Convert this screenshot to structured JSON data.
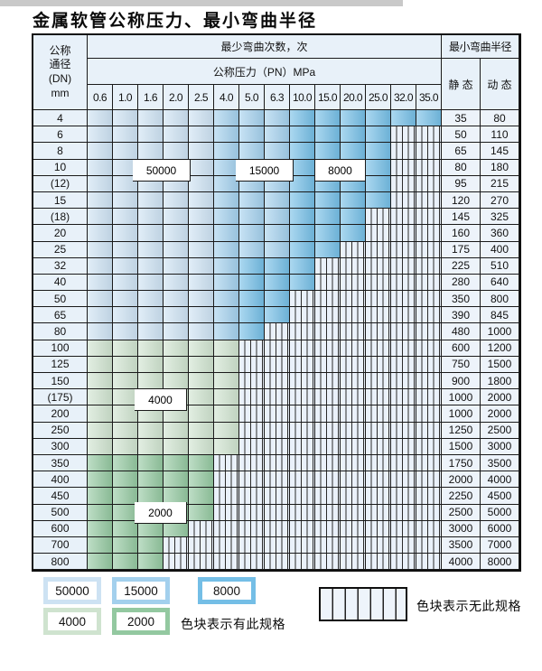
{
  "title": "金属软管公称压力、最小弯曲半径",
  "colors": {
    "blue_light": "#cde2f3",
    "blue_mid": "#a3d0ed",
    "blue_dark": "#74bee6",
    "green_light": "#cfe3cf",
    "green_mid": "#93c8a0",
    "hatch_bg": "#eaf1fa",
    "label_bg": "#e8f1f9",
    "header_bg": "#e8f1f9",
    "value_bg": "#edf3fa"
  },
  "table": {
    "corner_lines": [
      "公称",
      "通径",
      "(DN)",
      "mm"
    ],
    "bend_times_header": "最少弯曲次数，次",
    "radius_header": "最小弯曲半径",
    "pressure_header": "公称压力（PN）MPa",
    "static_label": "静 态",
    "dynamic_label": "动 态",
    "pressure_columns": [
      "0.6",
      "1.0",
      "1.6",
      "2.0",
      "2.5",
      "4.0",
      "5.0",
      "6.3",
      "10.0",
      "15.0",
      "20.0",
      "25.0",
      "32.0",
      "35.0"
    ],
    "cell_code_legend": {
      "L": "50000",
      "M": "15000",
      "D": "8000",
      "G": "4000",
      "g": "2000",
      ".": "无此规格"
    },
    "overlay_labels": {
      "v50000": "50000",
      "v15000": "15000",
      "v8000": "8000",
      "v4000": "4000",
      "v2000": "2000"
    },
    "rows": [
      {
        "dn": "4",
        "cells": "LLLLLMMMDDDDDD",
        "static": "35",
        "dynamic": "80"
      },
      {
        "dn": "6",
        "cells": "LLLLLMMMDDDD..",
        "static": "50",
        "dynamic": "110"
      },
      {
        "dn": "8",
        "cells": "LLLLLMMMDDDD..",
        "static": "65",
        "dynamic": "145"
      },
      {
        "dn": "10",
        "cells": "LLLLLMMMDDDD..",
        "static": "80",
        "dynamic": "180"
      },
      {
        "dn": "(12)",
        "cells": "LLLLLMMMDDDD..",
        "static": "95",
        "dynamic": "215"
      },
      {
        "dn": "15",
        "cells": "LLLLLMMMDDDD..",
        "static": "120",
        "dynamic": "270"
      },
      {
        "dn": "(18)",
        "cells": "LLLLLMMMDDD...",
        "static": "145",
        "dynamic": "325"
      },
      {
        "dn": "20",
        "cells": "LLLLLMMMDDD...",
        "static": "160",
        "dynamic": "360"
      },
      {
        "dn": "25",
        "cells": "LLLLLMMMDD....",
        "static": "175",
        "dynamic": "400"
      },
      {
        "dn": "32",
        "cells": "LLLLLMDDD.....",
        "static": "225",
        "dynamic": "510"
      },
      {
        "dn": "40",
        "cells": "LLLLLMDDD.....",
        "static": "280",
        "dynamic": "640"
      },
      {
        "dn": "50",
        "cells": "LLLLLMDD......",
        "static": "350",
        "dynamic": "800"
      },
      {
        "dn": "65",
        "cells": "LLLLLMDD......",
        "static": "390",
        "dynamic": "845"
      },
      {
        "dn": "80",
        "cells": "LLLLLMD.......",
        "static": "480",
        "dynamic": "1000"
      },
      {
        "dn": "100",
        "cells": "GGGGGG........",
        "static": "600",
        "dynamic": "1200"
      },
      {
        "dn": "125",
        "cells": "GGGGGG........",
        "static": "750",
        "dynamic": "1500"
      },
      {
        "dn": "150",
        "cells": "GGGGGG........",
        "static": "900",
        "dynamic": "1800"
      },
      {
        "dn": "(175)",
        "cells": "GGGGGG........",
        "static": "1000",
        "dynamic": "2000"
      },
      {
        "dn": "200",
        "cells": "GGGGGG........",
        "static": "1000",
        "dynamic": "2000"
      },
      {
        "dn": "250",
        "cells": "GGGGGG........",
        "static": "1250",
        "dynamic": "2500"
      },
      {
        "dn": "300",
        "cells": "GGGGGG........",
        "static": "1500",
        "dynamic": "3000"
      },
      {
        "dn": "350",
        "cells": "ggggg.........",
        "static": "1750",
        "dynamic": "3500"
      },
      {
        "dn": "400",
        "cells": "ggggg.........",
        "static": "2000",
        "dynamic": "4000"
      },
      {
        "dn": "450",
        "cells": "ggggg.........",
        "static": "2250",
        "dynamic": "4500"
      },
      {
        "dn": "500",
        "cells": "ggggg.........",
        "static": "2500",
        "dynamic": "5000"
      },
      {
        "dn": "600",
        "cells": "gggg..........",
        "static": "3000",
        "dynamic": "6000"
      },
      {
        "dn": "700",
        "cells": "ggg...........",
        "static": "3500",
        "dynamic": "7000"
      },
      {
        "dn": "800",
        "cells": "ggg...........",
        "static": "4000",
        "dynamic": "8000"
      }
    ]
  },
  "legend": {
    "swatches": [
      {
        "label": "50000",
        "colorKey": "blue_light"
      },
      {
        "label": "15000",
        "colorKey": "blue_mid"
      },
      {
        "label": "8000",
        "colorKey": "blue_dark"
      },
      {
        "label": "4000",
        "colorKey": "green_light"
      },
      {
        "label": "2000",
        "colorKey": "green_mid"
      }
    ],
    "available_note": "色块表示有此规格",
    "unavailable_note": "色块表示无此规格"
  }
}
